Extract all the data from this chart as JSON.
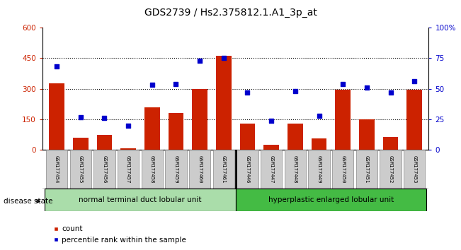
{
  "title": "GDS2739 / Hs2.375812.1.A1_3p_at",
  "samples": [
    "GSM177454",
    "GSM177455",
    "GSM177456",
    "GSM177457",
    "GSM177458",
    "GSM177459",
    "GSM177460",
    "GSM177461",
    "GSM177446",
    "GSM177447",
    "GSM177448",
    "GSM177449",
    "GSM177450",
    "GSM177451",
    "GSM177452",
    "GSM177453"
  ],
  "counts": [
    325,
    60,
    75,
    10,
    210,
    180,
    300,
    460,
    130,
    25,
    130,
    55,
    295,
    150,
    65,
    295
  ],
  "percentiles": [
    68,
    27,
    26,
    20,
    53,
    54,
    73,
    75,
    47,
    24,
    48,
    28,
    54,
    51,
    47,
    56
  ],
  "group1_label": "normal terminal duct lobular unit",
  "group2_label": "hyperplastic enlarged lobular unit",
  "group1_count": 8,
  "group2_count": 8,
  "ylim_left": [
    0,
    600
  ],
  "ylim_right": [
    0,
    100
  ],
  "yticks_left": [
    0,
    150,
    300,
    450,
    600
  ],
  "yticks_right": [
    0,
    25,
    50,
    75,
    100
  ],
  "yticklabels_right": [
    "0",
    "25",
    "50",
    "75",
    "100%"
  ],
  "bar_color": "#cc2200",
  "dot_color": "#0000cc",
  "group1_bg": "#aaddaa",
  "group2_bg": "#44bb44",
  "tick_bg": "#cccccc",
  "disease_state_label": "disease state",
  "legend_count_label": "count",
  "legend_pct_label": "percentile rank within the sample"
}
